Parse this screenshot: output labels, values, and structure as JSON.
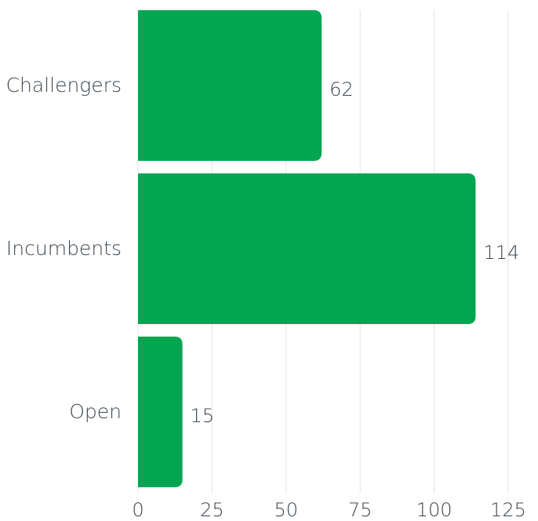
{
  "chart_data": {
    "type": "bar",
    "orientation": "horizontal",
    "categories": [
      "Challengers",
      "Incumbents",
      "Open"
    ],
    "values": [
      62,
      114,
      15
    ],
    "color": "#02a651",
    "xlim": [
      0,
      125
    ],
    "xticks": [
      0,
      25,
      50,
      75,
      100,
      125
    ],
    "grid": true
  }
}
